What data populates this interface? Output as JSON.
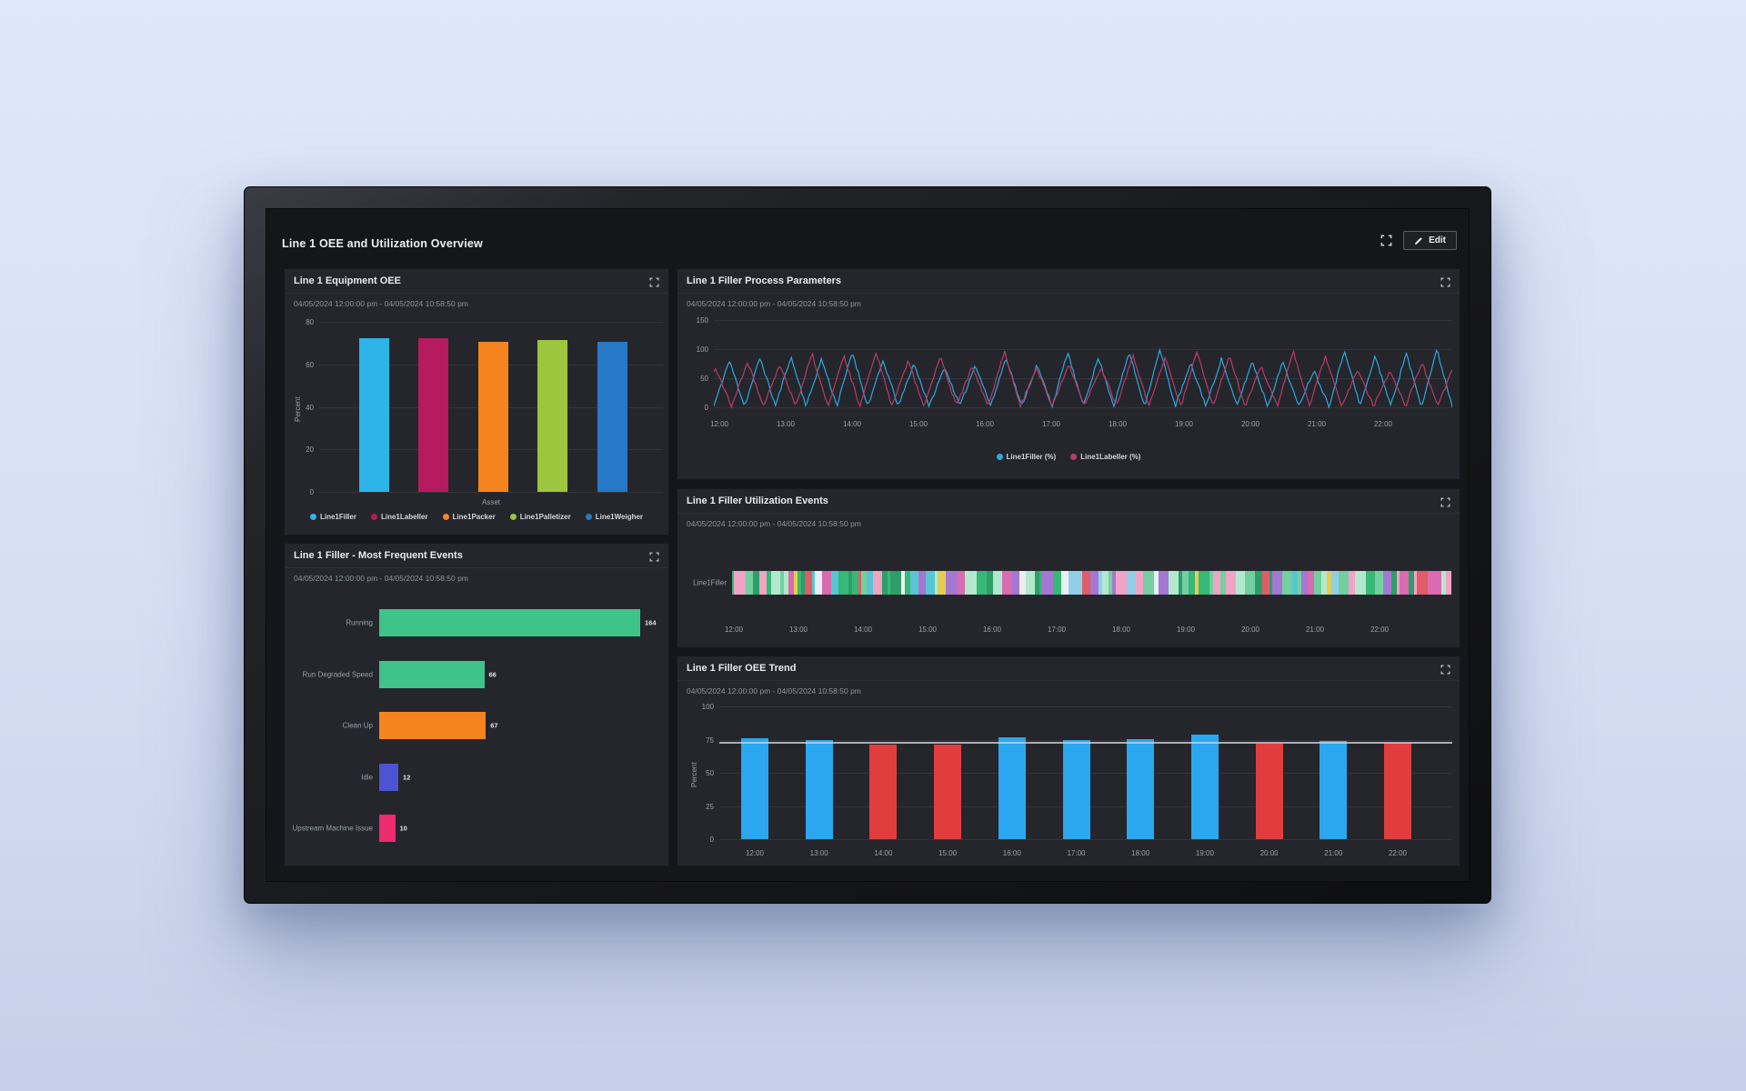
{
  "dashboard": {
    "title": "Line 1 OEE and Utilization Overview",
    "toolbar": {
      "edit_label": "Edit"
    },
    "icons": {
      "dashboard_fullscreen": "expand-corners",
      "edit": "pencil",
      "panel_expand": "expand-corners"
    },
    "timerange": "04/05/2024 12:00:00 pm - 04/05/2024 10:58:50 pm",
    "colors": {
      "screen_bg": "#141619",
      "panel_bg": "#24262c",
      "text_primary": "#e8eaed",
      "text_secondary": "#8f959c"
    }
  },
  "time_ticks": [
    "12:00",
    "13:00",
    "14:00",
    "15:00",
    "16:00",
    "17:00",
    "18:00",
    "19:00",
    "20:00",
    "21:00",
    "22:00"
  ],
  "panels": {
    "equipment_oee": {
      "title": "Line 1 Equipment OEE",
      "timerange": "04/05/2024 12:00:00 pm - 04/05/2024 10:58:50 pm",
      "chart_data": {
        "type": "bar",
        "categories": [
          "Line1Filler",
          "Line1Labeller",
          "Line1Packer",
          "Line1Palletizer",
          "Line1Weigher"
        ],
        "values": [
          72.4,
          72.3,
          70.4,
          71.6,
          70.5
        ],
        "colors": [
          "#2db4e8",
          "#b51b5e",
          "#f5841f",
          "#9ec53e",
          "#2579c6"
        ],
        "title": "Line 1 Equipment OEE",
        "xlabel": "Asset",
        "ylabel": "Percent",
        "yticks": [
          0,
          20,
          40,
          60,
          80
        ],
        "ylim": [
          0,
          80
        ],
        "grid": true,
        "legend_position": "bottom"
      }
    },
    "frequent_events": {
      "title": "Line 1 Filler - Most Frequent Events",
      "timerange": "04/05/2024 12:00:00 pm - 04/05/2024 10:58:50 pm",
      "chart_data": {
        "type": "bar",
        "orientation": "horizontal",
        "categories": [
          "Running",
          "Run Degraded Speed",
          "Clean Up",
          "Idle",
          "Upstream Machine Issue"
        ],
        "values": [
          164,
          66,
          67,
          12,
          10
        ],
        "colors": [
          "#3ec488",
          "#3ec488",
          "#f5841f",
          "#4d54d1",
          "#ee2b6c"
        ],
        "value_labels_shown": true,
        "grid": false
      }
    },
    "process_parameters": {
      "title": "Line 1 Filler Process Parameters",
      "timerange": "04/05/2024 12:00:00 pm - 04/05/2024 10:58:50 pm",
      "chart_data": {
        "type": "line",
        "xticks": [
          "12:00",
          "13:00",
          "14:00",
          "15:00",
          "16:00",
          "17:00",
          "18:00",
          "19:00",
          "20:00",
          "21:00",
          "22:00"
        ],
        "yticks": [
          0,
          50,
          100,
          150
        ],
        "ylim": [
          0,
          150
        ],
        "series": [
          {
            "name": "Line1Filler (%)",
            "color": "#2fa7e0",
            "pattern": "triangle-oscillation",
            "min": 2,
            "max": 100,
            "cycles_visible": 24,
            "phase": 0.0
          },
          {
            "name": "Line1Labeller (%)",
            "color": "#bb3b66",
            "pattern": "triangle-oscillation",
            "min": 2,
            "max": 100,
            "cycles_visible": 23,
            "phase": 0.45
          }
        ],
        "legend_position": "bottom-center",
        "grid": true
      }
    },
    "utilization_events": {
      "title": "Line 1 Filler Utilization Events",
      "timerange": "04/05/2024 12:00:00 pm - 04/05/2024 10:58:50 pm",
      "chart_data": {
        "type": "state-timeline",
        "row_label": "Line1Filler",
        "xticks": [
          "12:00",
          "13:00",
          "14:00",
          "15:00",
          "16:00",
          "17:00",
          "18:00",
          "19:00",
          "20:00",
          "21:00",
          "22:00"
        ],
        "segment_count": 150,
        "palette": [
          "#37b877",
          "#2e9e68",
          "#73cf9f",
          "#b2e8cc",
          "#e9eef2",
          "#f0a3c4",
          "#e05c66",
          "#a478d2",
          "#e6cc55",
          "#57c6d4",
          "#d96bb0",
          "#8fd0e8"
        ],
        "palette_weights": [
          22,
          14,
          14,
          8,
          10,
          7,
          6,
          6,
          4,
          4,
          3,
          2
        ]
      }
    },
    "oee_trend": {
      "title": "Line 1 Filler OEE Trend",
      "timerange": "04/05/2024 12:00:00 pm - 04/05/2024 10:58:50 pm",
      "chart_data": {
        "type": "bar",
        "categories": [
          "12:00",
          "13:00",
          "14:00",
          "15:00",
          "16:00",
          "17:00",
          "18:00",
          "19:00",
          "20:00",
          "21:00",
          "22:00"
        ],
        "values": [
          76,
          74.5,
          71.5,
          71.5,
          77,
          75,
          75.5,
          79,
          72,
          74,
          72.5
        ],
        "bar_colors": [
          "#2aa7ee",
          "#2aa7ee",
          "#e23d3d",
          "#e23d3d",
          "#2aa7ee",
          "#2aa7ee",
          "#2aa7ee",
          "#2aa7ee",
          "#e23d3d",
          "#2aa7ee",
          "#e23d3d"
        ],
        "color_rule": "blue above threshold, red below",
        "threshold": 73.5,
        "threshold_color": "#cdd0d6",
        "ylabel": "Percent",
        "yticks": [
          0,
          25,
          50,
          75,
          100
        ],
        "ylim": [
          0,
          100
        ],
        "grid": true
      }
    }
  }
}
